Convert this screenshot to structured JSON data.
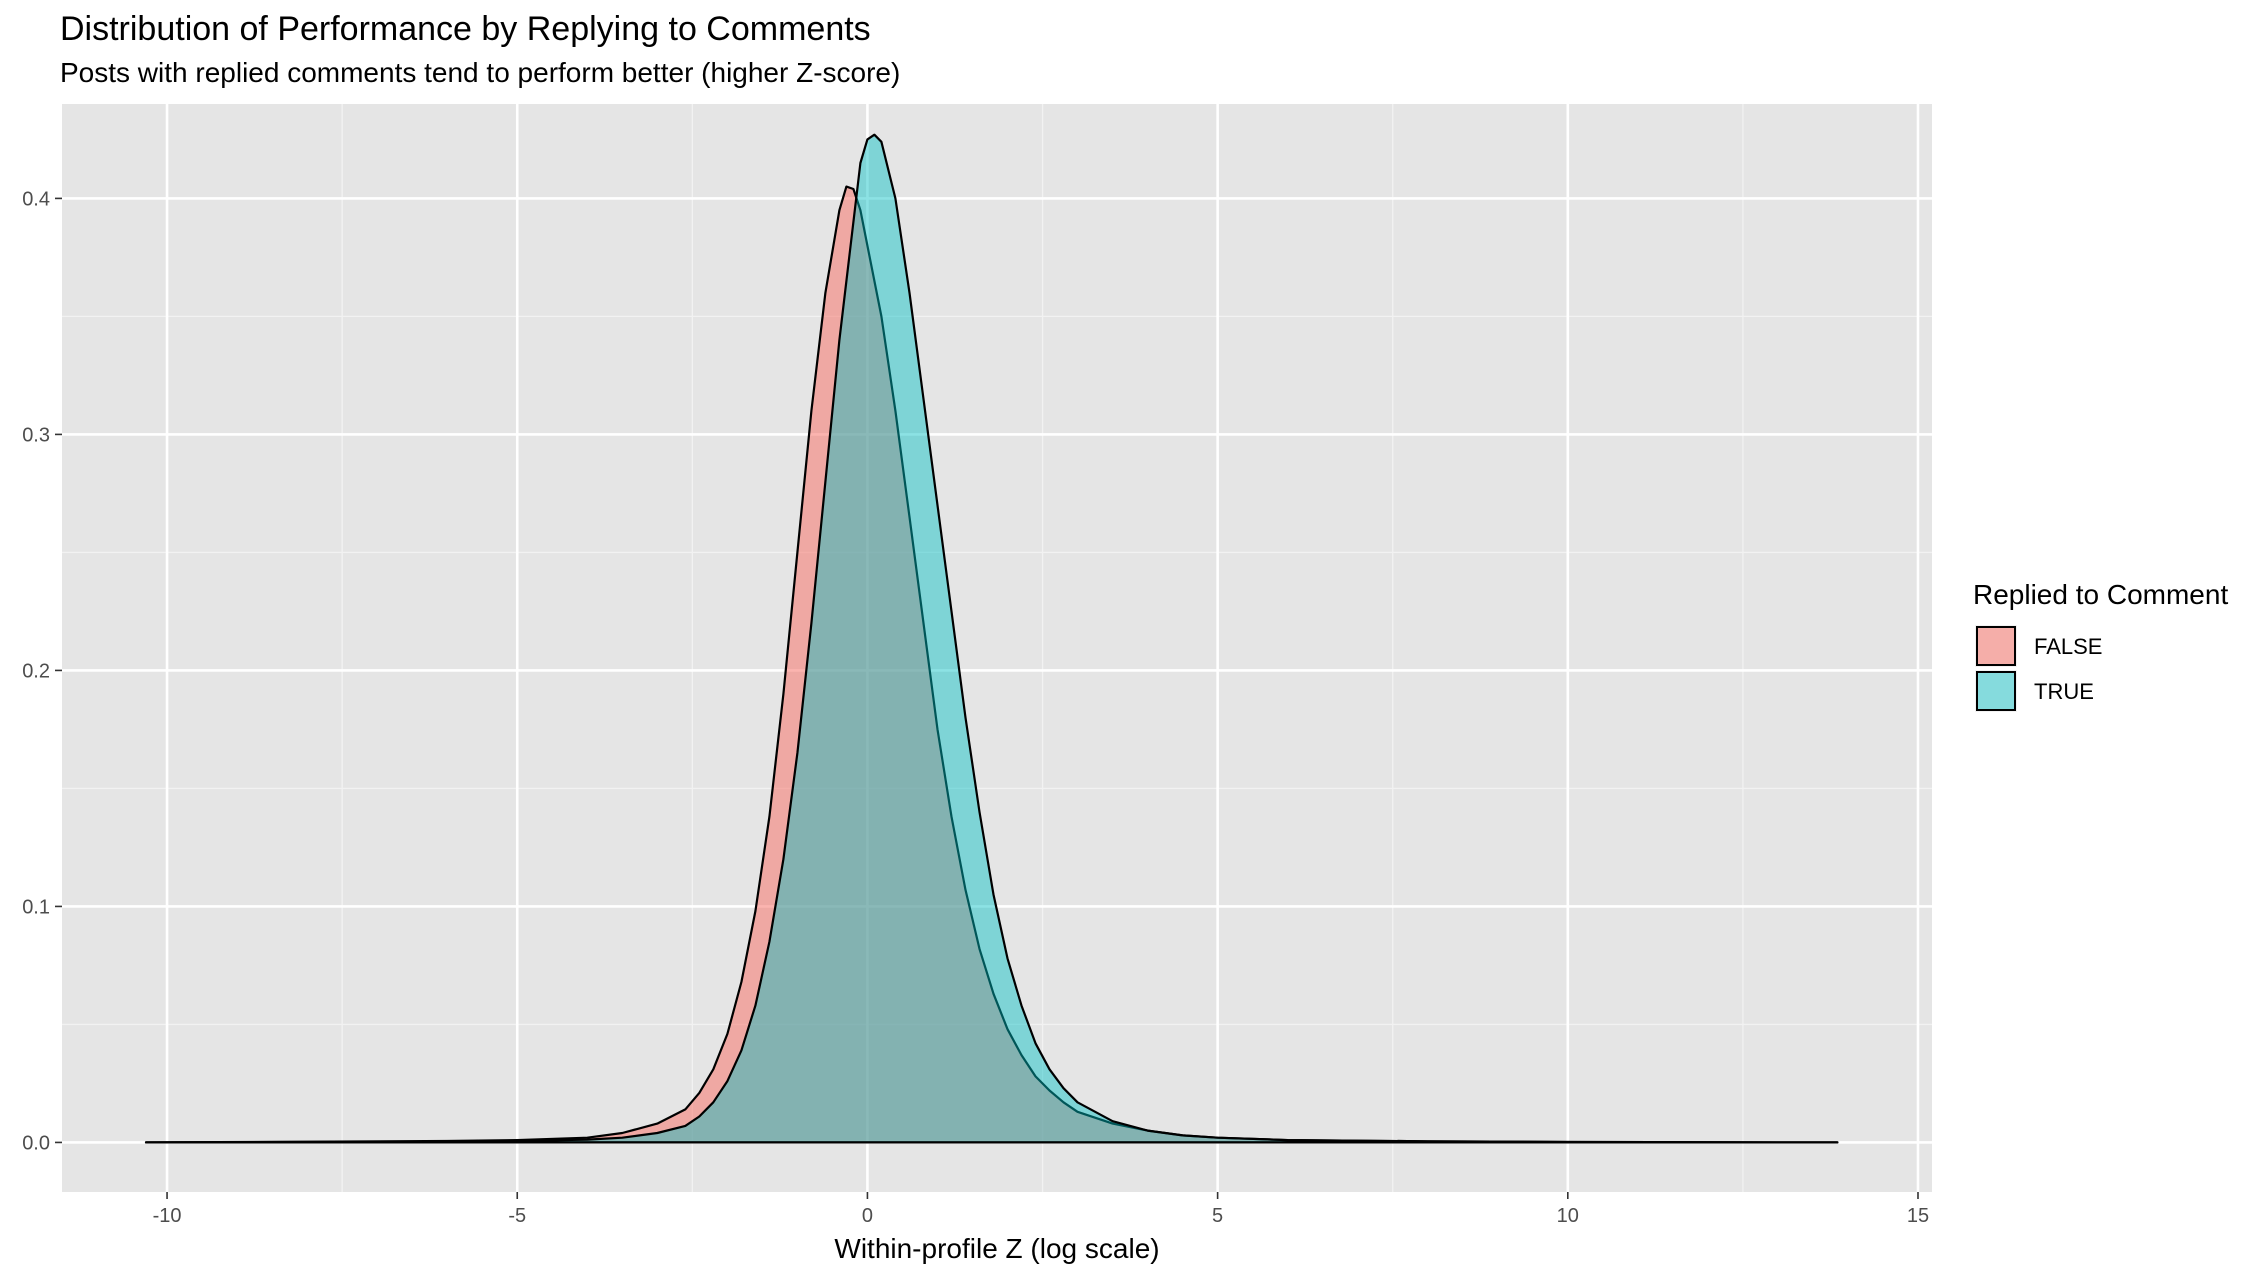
{
  "chart_data": {
    "type": "area",
    "subtype": "density",
    "title": "Distribution of Performance by Replying to Comments",
    "subtitle": "Posts with replied comments tend to perform better (higher Z-score)",
    "xlabel": "Within-profile Z (log scale)",
    "ylabel": "",
    "xlim": [
      -11.5,
      15.2
    ],
    "ylim": [
      -0.021,
      0.44
    ],
    "x_ticks": [
      -10,
      -5,
      0,
      5,
      10,
      15
    ],
    "x_tick_labels": [
      "-10",
      "-5",
      "0",
      "5",
      "10",
      "15"
    ],
    "y_ticks": [
      0.0,
      0.1,
      0.2,
      0.3,
      0.4
    ],
    "y_tick_labels": [
      "0.0",
      "0.1",
      "0.2",
      "0.3",
      "0.4"
    ],
    "grid": true,
    "background": "#e5e5e5",
    "legend": {
      "title": "Replied to Comment",
      "position": "right"
    },
    "series": [
      {
        "name": "FALSE",
        "color": "#F8766D",
        "fill_opacity": 0.55,
        "x": [
          -10.3,
          -8,
          -6,
          -5,
          -4,
          -3.5,
          -3,
          -2.6,
          -2.4,
          -2.2,
          -2.0,
          -1.8,
          -1.6,
          -1.4,
          -1.2,
          -1.0,
          -0.8,
          -0.6,
          -0.4,
          -0.3,
          -0.2,
          -0.1,
          0.0,
          0.2,
          0.4,
          0.6,
          0.8,
          1.0,
          1.2,
          1.4,
          1.6,
          1.8,
          2.0,
          2.2,
          2.4,
          2.6,
          2.8,
          3.0,
          3.5,
          4.0,
          4.5,
          5.0,
          6.0,
          8.0,
          10.0,
          13.85
        ],
        "y": [
          0.0,
          0.0003,
          0.0006,
          0.001,
          0.002,
          0.004,
          0.008,
          0.014,
          0.021,
          0.031,
          0.046,
          0.068,
          0.098,
          0.138,
          0.19,
          0.25,
          0.31,
          0.36,
          0.395,
          0.405,
          0.404,
          0.395,
          0.38,
          0.35,
          0.31,
          0.265,
          0.22,
          0.175,
          0.138,
          0.107,
          0.082,
          0.063,
          0.048,
          0.037,
          0.028,
          0.022,
          0.017,
          0.013,
          0.008,
          0.005,
          0.003,
          0.002,
          0.001,
          0.0005,
          0.0002,
          0.0
        ]
      },
      {
        "name": "TRUE",
        "color": "#00BFC4",
        "fill_opacity": 0.45,
        "x": [
          -10.3,
          -8,
          -6,
          -5,
          -4,
          -3.5,
          -3,
          -2.6,
          -2.4,
          -2.2,
          -2.0,
          -1.8,
          -1.6,
          -1.4,
          -1.2,
          -1.0,
          -0.8,
          -0.6,
          -0.4,
          -0.2,
          -0.1,
          0.0,
          0.1,
          0.2,
          0.4,
          0.6,
          0.8,
          1.0,
          1.2,
          1.4,
          1.6,
          1.8,
          2.0,
          2.2,
          2.4,
          2.6,
          2.8,
          3.0,
          3.5,
          4.0,
          4.5,
          5.0,
          6.0,
          8.0,
          10.0,
          13.85
        ],
        "y": [
          0.0,
          0.0002,
          0.0004,
          0.0007,
          0.0012,
          0.002,
          0.004,
          0.007,
          0.011,
          0.017,
          0.026,
          0.039,
          0.058,
          0.085,
          0.12,
          0.165,
          0.22,
          0.28,
          0.34,
          0.39,
          0.415,
          0.425,
          0.427,
          0.424,
          0.4,
          0.36,
          0.315,
          0.27,
          0.225,
          0.18,
          0.14,
          0.105,
          0.078,
          0.058,
          0.042,
          0.031,
          0.023,
          0.017,
          0.009,
          0.005,
          0.003,
          0.002,
          0.001,
          0.0005,
          0.0002,
          0.0
        ]
      }
    ]
  }
}
